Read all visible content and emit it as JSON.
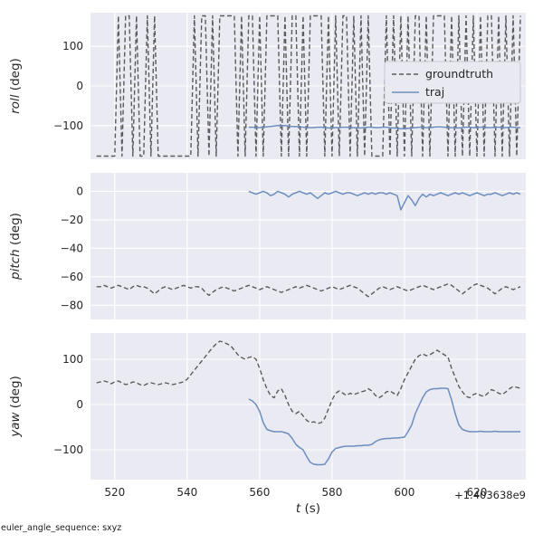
{
  "figure": {
    "xlabel_var": "t",
    "xlabel_unit": " (s)",
    "x_offset_text": "+1.403638e9",
    "background": "#ffffff",
    "axes_background": "#eaeaf2",
    "grid_color": "#ffffff",
    "text_color": "#262626",
    "legend_bg": "#e9e9f1",
    "legend_border": "#c9c9d4"
  },
  "footnote": "euler_angle_sequence: sxyz",
  "chart_data": [
    {
      "type": "line",
      "ylabel_var": "roll",
      "ylabel_unit": " (deg)",
      "xlim": [
        513.3,
        633.5
      ],
      "ylim": [
        -185,
        185
      ],
      "xticks": [
        520,
        540,
        560,
        580,
        600,
        620
      ],
      "yticks": [
        -100,
        0,
        100
      ],
      "show_xticklabels": false,
      "legend": {
        "show": true,
        "position": "upper right"
      },
      "series": [
        {
          "name": "groundtruth",
          "style": "dashed",
          "color": "#5a5a5a",
          "x0": 515,
          "dx": 1,
          "y": [
            -177,
            -177,
            -177,
            -177,
            -177,
            -177,
            177,
            -177,
            177,
            177,
            -177,
            177,
            -177,
            -177,
            177,
            -177,
            177,
            -177,
            -177,
            -177,
            -177,
            -177,
            -177,
            -177,
            -177,
            -177,
            -177,
            177,
            -177,
            177,
            177,
            -177,
            177,
            -177,
            177,
            177,
            177,
            177,
            177,
            -177,
            177,
            -177,
            177,
            177,
            -177,
            177,
            -177,
            177,
            177,
            177,
            177,
            -177,
            177,
            -177,
            177,
            177,
            -177,
            177,
            -177,
            177,
            177,
            177,
            177,
            -177,
            177,
            -177,
            177,
            -177,
            177,
            177,
            -177,
            177,
            -177,
            177,
            -177,
            177,
            -177,
            -177,
            -177,
            -177,
            177,
            -177,
            177,
            -177,
            177,
            -177,
            177,
            -177,
            177,
            177,
            -177,
            177,
            -177,
            177,
            177,
            177,
            177,
            -177,
            177,
            -177,
            177,
            -177,
            177,
            -177,
            177,
            -177,
            177,
            -177,
            177,
            177,
            -177,
            177,
            -177,
            177,
            -177,
            177,
            -177,
            177
          ]
        },
        {
          "name": "traj",
          "style": "solid",
          "color": "#6c8ebf",
          "x0": 557,
          "dx": 1,
          "y": [
            -104,
            -104,
            -105,
            -105,
            -104,
            -103,
            -102,
            -101,
            -100,
            -100,
            -100,
            -101,
            -102,
            -102,
            -103,
            -104,
            -105,
            -105,
            -105,
            -104,
            -104,
            -105,
            -106,
            -106,
            -105,
            -105,
            -104,
            -104,
            -105,
            -105,
            -106,
            -106,
            -105,
            -104,
            -104,
            -105,
            -105,
            -104,
            -104,
            -105,
            -106,
            -107,
            -108,
            -108,
            -107,
            -106,
            -105,
            -104,
            -104,
            -105,
            -105,
            -104,
            -103,
            -103,
            -104,
            -105,
            -105,
            -106,
            -106,
            -105,
            -104,
            -104,
            -105,
            -105,
            -104,
            -104,
            -105,
            -105,
            -104,
            -104,
            -105,
            -105,
            -104,
            -104,
            -105,
            -105
          ]
        }
      ]
    },
    {
      "type": "line",
      "ylabel_var": "pitch",
      "ylabel_unit": " (deg)",
      "xlim": [
        513.3,
        633.5
      ],
      "ylim": [
        -90,
        13
      ],
      "xticks": [
        520,
        540,
        560,
        580,
        600,
        620
      ],
      "yticks": [
        -80,
        -60,
        -40,
        -20,
        0
      ],
      "show_xticklabels": false,
      "legend": {
        "show": false
      },
      "series": [
        {
          "name": "groundtruth",
          "style": "dashed",
          "color": "#5a5a5a",
          "x0": 515,
          "dx": 1,
          "y": [
            -67,
            -67,
            -66,
            -67,
            -68,
            -67,
            -66,
            -67,
            -68,
            -69,
            -67,
            -66,
            -67,
            -67,
            -68,
            -70,
            -72,
            -70,
            -68,
            -67,
            -68,
            -69,
            -68,
            -67,
            -66,
            -67,
            -68,
            -67,
            -67,
            -68,
            -71,
            -73,
            -71,
            -69,
            -68,
            -67,
            -68,
            -69,
            -70,
            -69,
            -68,
            -67,
            -66,
            -67,
            -68,
            -69,
            -68,
            -67,
            -68,
            -69,
            -70,
            -71,
            -70,
            -69,
            -68,
            -67,
            -68,
            -67,
            -66,
            -67,
            -68,
            -69,
            -70,
            -69,
            -68,
            -67,
            -68,
            -69,
            -68,
            -67,
            -66,
            -67,
            -68,
            -70,
            -72,
            -74,
            -72,
            -70,
            -68,
            -67,
            -68,
            -69,
            -68,
            -67,
            -68,
            -69,
            -70,
            -69,
            -68,
            -67,
            -66,
            -67,
            -68,
            -69,
            -68,
            -67,
            -66,
            -65,
            -66,
            -68,
            -70,
            -72,
            -70,
            -68,
            -66,
            -65,
            -66,
            -67,
            -68,
            -70,
            -72,
            -70,
            -68,
            -67,
            -68,
            -69,
            -68,
            -67
          ]
        },
        {
          "name": "traj",
          "style": "solid",
          "color": "#6c8ebf",
          "x0": 557,
          "dx": 1,
          "y": [
            0,
            -1,
            -2,
            -1,
            0,
            -1,
            -3,
            -2,
            0,
            -1,
            -2,
            -4,
            -2,
            -1,
            0,
            -1,
            -2,
            -1,
            -3,
            -5,
            -3,
            -1,
            -2,
            -1,
            0,
            -1,
            -2,
            -1,
            -1,
            -2,
            -3,
            -2,
            -1,
            -2,
            -1,
            -2,
            -1,
            -1,
            -2,
            -1,
            -2,
            -3,
            -13,
            -8,
            -3,
            -6,
            -10,
            -5,
            -2,
            -4,
            -2,
            -3,
            -2,
            -1,
            -2,
            -3,
            -2,
            -1,
            -2,
            -1,
            -2,
            -3,
            -2,
            -1,
            -2,
            -3,
            -2,
            -2,
            -1,
            -2,
            -3,
            -2,
            -1,
            -2,
            -1,
            -2
          ]
        }
      ]
    },
    {
      "type": "line",
      "ylabel_var": "yaw",
      "ylabel_unit": " (deg)",
      "xlim": [
        513.3,
        633.5
      ],
      "ylim": [
        -166,
        158
      ],
      "xticks": [
        520,
        540,
        560,
        580,
        600,
        620
      ],
      "yticks": [
        -100,
        0,
        100
      ],
      "show_xticklabels": true,
      "legend": {
        "show": false
      },
      "series": [
        {
          "name": "groundtruth",
          "style": "dashed",
          "color": "#5a5a5a",
          "x0": 515,
          "dx": 1,
          "y": [
            48,
            50,
            52,
            50,
            46,
            50,
            52,
            48,
            44,
            46,
            50,
            48,
            44,
            42,
            46,
            48,
            46,
            44,
            46,
            48,
            46,
            44,
            46,
            48,
            50,
            56,
            66,
            76,
            86,
            96,
            106,
            116,
            126,
            134,
            140,
            138,
            134,
            130,
            120,
            110,
            104,
            100,
            104,
            106,
            100,
            80,
            55,
            35,
            20,
            15,
            30,
            35,
            20,
            0,
            -15,
            -20,
            -15,
            -25,
            -35,
            -40,
            -38,
            -42,
            -40,
            -30,
            -10,
            10,
            25,
            30,
            25,
            20,
            25,
            22,
            25,
            28,
            30,
            35,
            30,
            20,
            15,
            20,
            28,
            30,
            25,
            20,
            35,
            55,
            70,
            85,
            100,
            108,
            112,
            108,
            110,
            115,
            120,
            115,
            110,
            105,
            80,
            60,
            40,
            28,
            18,
            15,
            22,
            25,
            20,
            18,
            25,
            33,
            30,
            25,
            22,
            28,
            35,
            40,
            38,
            36
          ]
        },
        {
          "name": "traj",
          "style": "solid",
          "color": "#6c8ebf",
          "x0": 557,
          "dx": 1,
          "y": [
            12,
            8,
            0,
            -15,
            -40,
            -55,
            -58,
            -60,
            -60,
            -60,
            -62,
            -65,
            -75,
            -88,
            -95,
            -100,
            -115,
            -128,
            -132,
            -133,
            -133,
            -132,
            -120,
            -105,
            -97,
            -95,
            -93,
            -92,
            -92,
            -92,
            -91,
            -91,
            -90,
            -90,
            -88,
            -82,
            -78,
            -76,
            -75,
            -75,
            -74,
            -74,
            -73,
            -72,
            -60,
            -45,
            -20,
            -2,
            15,
            28,
            33,
            35,
            35,
            36,
            36,
            35,
            10,
            -20,
            -45,
            -55,
            -58,
            -60,
            -60,
            -60,
            -59,
            -60,
            -60,
            -60,
            -59,
            -60,
            -60,
            -60,
            -60,
            -60,
            -60,
            -60
          ]
        }
      ]
    }
  ]
}
